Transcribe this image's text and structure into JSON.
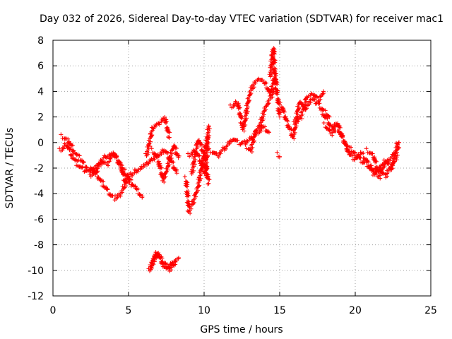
{
  "chart_data": {
    "type": "scatter",
    "title": "Day 032 of 2026, Sidereal Day-to-day VTEC variation (SDTVAR) for receiver mac1",
    "xlabel": "GPS time / hours",
    "ylabel": "SDTVAR / TECUs",
    "xlim": [
      0,
      25
    ],
    "ylim": [
      -12,
      8
    ],
    "xticks": [
      0,
      5,
      10,
      15,
      20,
      25
    ],
    "yticks": [
      -12,
      -10,
      -8,
      -6,
      -4,
      -2,
      0,
      2,
      4,
      6,
      8
    ],
    "grid": true,
    "marker": "+",
    "series": [
      {
        "name": "SDTVAR",
        "color": "#ff0000",
        "traces": [
          {
            "x": [
              0.5,
              0.9,
              1.3,
              1.7,
              2.1,
              2.5,
              2.8
            ],
            "y": [
              -0.6,
              -0.1,
              -1.1,
              -1.8,
              -2.2,
              -2.3,
              -2.5
            ]
          },
          {
            "x": [
              0.6,
              1.0,
              1.4,
              1.8,
              2.2
            ],
            "y": [
              0.5,
              0.2,
              -0.7,
              -1.3,
              -1.9
            ]
          },
          {
            "x": [
              2.3,
              2.6,
              3.0,
              3.4,
              3.8,
              4.2,
              4.6,
              5.0,
              5.4,
              5.8,
              6.2,
              6.6,
              7.0,
              7.4,
              7.8,
              8.2
            ],
            "y": [
              -2.1,
              -1.9,
              -2.7,
              -3.4,
              -4.1,
              -4.4,
              -3.8,
              -2.6,
              -2.3,
              -2.0,
              -1.6,
              -1.3,
              -1.0,
              -0.6,
              -1.4,
              -2.4
            ]
          },
          {
            "x": [
              2.5,
              3.0,
              3.5,
              4.0,
              4.5,
              5.0,
              5.5,
              5.9
            ],
            "y": [
              -2.6,
              -1.6,
              -1.1,
              -0.9,
              -1.9,
              -2.8,
              -3.6,
              -4.3
            ]
          },
          {
            "x": [
              2.8,
              3.2,
              3.6,
              4.0,
              4.4,
              4.8,
              5.2
            ],
            "y": [
              -2.4,
              -1.4,
              -1.7,
              -0.8,
              -1.5,
              -3.1,
              -3.3
            ]
          },
          {
            "x": [
              6.2,
              6.6,
              7.0,
              7.4,
              7.7
            ],
            "y": [
              -1.0,
              1.2,
              1.5,
              1.9,
              0.4
            ]
          },
          {
            "x": [
              6.6,
              7.0,
              7.3,
              7.6,
              8.0,
              8.3
            ],
            "y": [
              -0.6,
              -1.5,
              -3.0,
              -1.8,
              -0.2,
              -1.2
            ]
          },
          {
            "x": [
              6.4,
              6.8,
              7.2,
              7.6,
              8.0,
              8.3
            ],
            "y": [
              -10.0,
              -8.7,
              -9.2,
              -9.8,
              -9.4,
              -9.1
            ]
          },
          {
            "x": [
              6.5,
              6.9,
              7.3,
              7.7,
              8.1
            ],
            "y": [
              -9.7,
              -8.5,
              -9.6,
              -10.0,
              -9.3
            ]
          },
          {
            "x": [
              8.8,
              9.0,
              9.3,
              9.6,
              9.9,
              10.2
            ],
            "y": [
              -2.8,
              -5.4,
              -4.6,
              -3.4,
              -1.6,
              0.4
            ]
          },
          {
            "x": [
              9.0,
              9.4,
              9.8,
              10.1,
              10.3
            ],
            "y": [
              -1.0,
              -0.6,
              -1.5,
              -2.5,
              1.3
            ]
          },
          {
            "x": [
              9.2,
              9.6,
              10.0,
              10.3
            ],
            "y": [
              -2.4,
              0.3,
              -0.9,
              -3.2
            ]
          },
          {
            "x": [
              10.4,
              10.9,
              11.4,
              11.9,
              12.4,
              12.9,
              13.4,
              13.9,
              14.3
            ],
            "y": [
              -0.6,
              -1.0,
              -0.4,
              0.3,
              -0.1,
              0.1,
              0.6,
              1.2,
              0.8
            ]
          },
          {
            "x": [
              11.8,
              12.2,
              12.6,
              13.0,
              13.3,
              13.6,
              14.0,
              14.4,
              14.7,
              15.0
            ],
            "y": [
              2.8,
              3.2,
              1.0,
              3.8,
              4.6,
              4.9,
              4.7,
              3.8,
              5.3,
              2.0
            ]
          },
          {
            "x": [
              12.8,
              13.1,
              13.4,
              13.7,
              14.0,
              14.3,
              14.6
            ],
            "y": [
              -0.3,
              -0.6,
              0.9,
              1.3,
              2.5,
              3.3,
              4.0
            ]
          },
          {
            "x": [
              14.4,
              14.5,
              14.6,
              14.7
            ],
            "y": [
              5.2,
              6.8,
              7.4,
              4.2
            ]
          },
          {
            "x": [
              14.9,
              15.0
            ],
            "y": [
              -0.9,
              -1.1
            ]
          },
          {
            "x": [
              15.1,
              15.5,
              15.9,
              16.3,
              16.7,
              17.1,
              17.5,
              17.9,
              18.3
            ],
            "y": [
              3.0,
              1.5,
              0.4,
              3.2,
              2.6,
              3.4,
              3.1,
              2.5,
              2.0
            ]
          },
          {
            "x": [
              16.0,
              16.4,
              16.8,
              17.2,
              17.6,
              17.9
            ],
            "y": [
              1.5,
              2.0,
              3.6,
              3.8,
              3.3,
              4.0
            ]
          },
          {
            "x": [
              17.8,
              18.2,
              18.6,
              19.0,
              19.4,
              19.8,
              20.2,
              20.6,
              21.0,
              21.4,
              21.8,
              22.2,
              22.6,
              22.9
            ],
            "y": [
              2.4,
              1.6,
              1.0,
              0.8,
              -0.2,
              -0.7,
              -1.2,
              -1.6,
              -1.9,
              -2.2,
              -1.7,
              -1.4,
              -0.9,
              -0.4
            ]
          },
          {
            "x": [
              18.0,
              18.4,
              18.8,
              19.2,
              19.6,
              20.0,
              20.4,
              20.8,
              21.2,
              21.6,
              22.0,
              22.4,
              22.8
            ],
            "y": [
              1.4,
              0.7,
              1.6,
              0.2,
              -0.9,
              -1.3,
              -0.8,
              -1.5,
              -2.5,
              -2.1,
              -2.6,
              -1.8,
              -1.0
            ]
          },
          {
            "x": [
              20.8,
              21.2,
              21.6,
              22.0,
              22.4,
              22.8,
              22.9
            ],
            "y": [
              -0.6,
              -1.0,
              -2.7,
              -1.4,
              -2.1,
              -0.1,
              0.0
            ]
          }
        ]
      }
    ]
  }
}
